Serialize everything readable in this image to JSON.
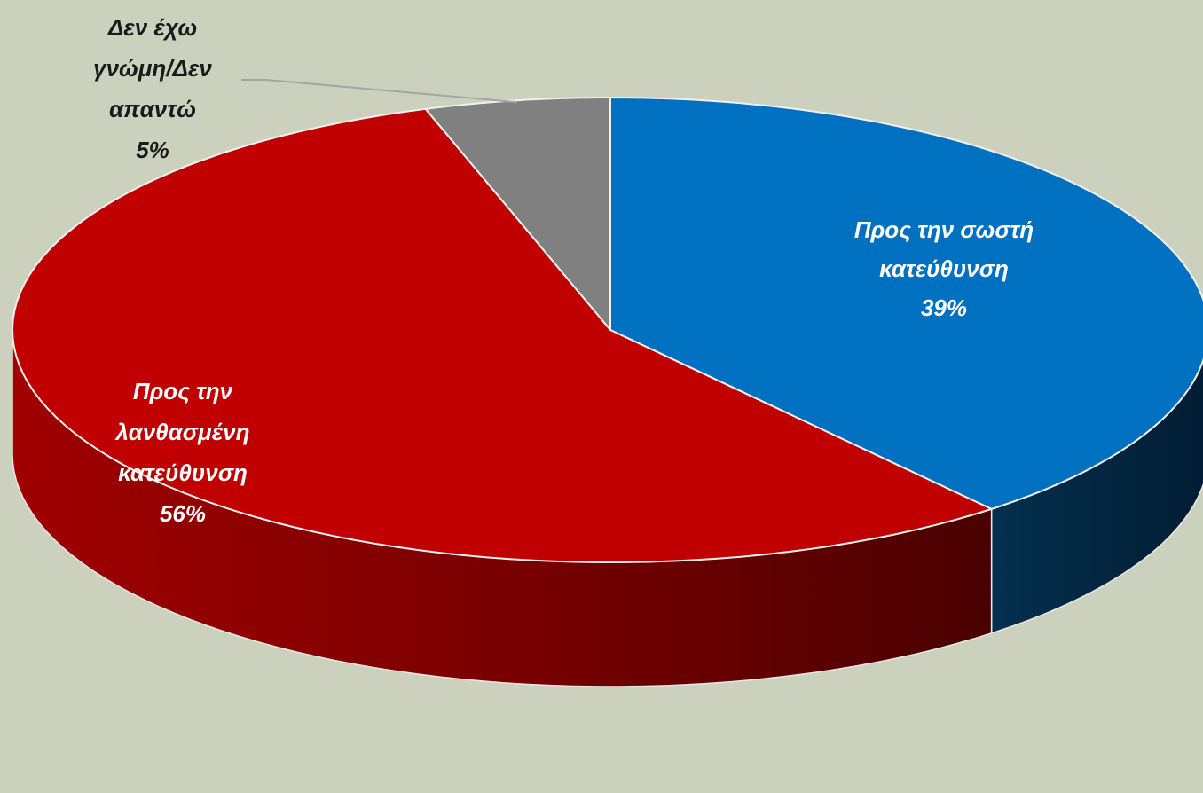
{
  "chart_data": {
    "type": "pie",
    "style": "3d",
    "categories": [
      "Προς την σωστή κατεύθυνση",
      "Προς την λανθασμένη κατεύθυνση",
      "Δεν έχω γνώμη/Δεν απαντώ"
    ],
    "values": [
      39,
      56,
      5
    ],
    "unit": "%",
    "colors": [
      "#0070c0",
      "#c00000",
      "#808080"
    ],
    "labels": [
      {
        "lines": [
          "Προς την σωστή",
          "κατεύθυνση",
          "39%"
        ],
        "color": "#ffffff"
      },
      {
        "lines": [
          "Προς την",
          "λανθασμένη",
          "κατεύθυνση",
          "56%"
        ],
        "color": "#ffffff"
      },
      {
        "lines": [
          "Δεν έχω",
          "γνώμη/Δεν",
          "απαντώ",
          "5%"
        ],
        "color": "#1a1a1a"
      }
    ],
    "background": "#ccd1bd",
    "legend": "none"
  }
}
